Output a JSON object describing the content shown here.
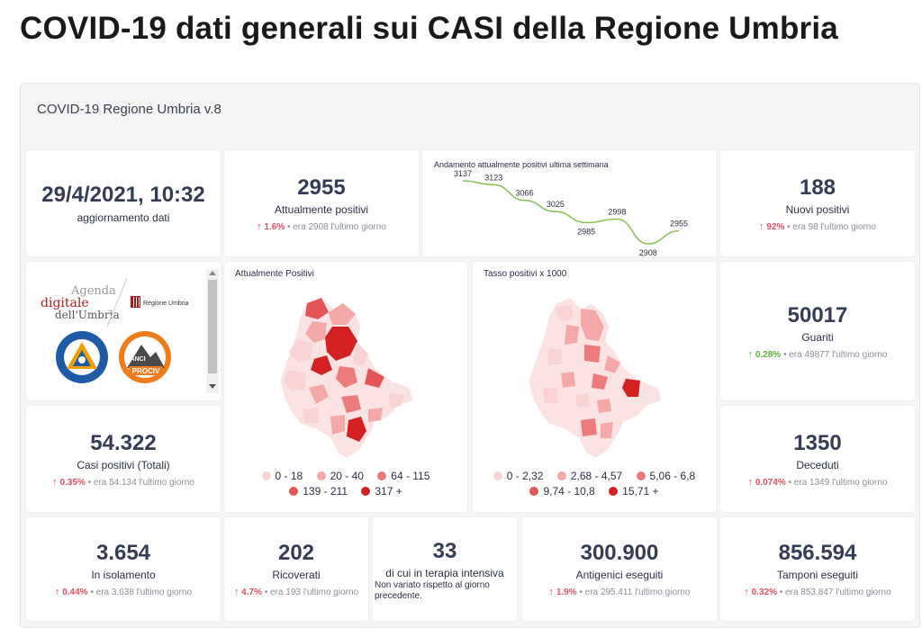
{
  "page_title": "COVID-19 dati generali sui CASI della Regione Umbria",
  "dashboard_title": "COVID-19 Regione Umbria v.8",
  "update": {
    "datetime": "29/4/2021, 10:32",
    "label": "aggiornamento dati"
  },
  "attualmente_positivi": {
    "value": "2955",
    "label": "Attualmente positivi",
    "pct": "1.6%",
    "prev": "• era 2908  l'ultimo giorno"
  },
  "trend_chart": {
    "title": "Andamento attualmente positivi ultima settimana",
    "chart_data": {
      "type": "line",
      "title": "Andamento attualmente positivi ultima settimana",
      "values": [
        3137,
        3123,
        3066,
        3025,
        2985,
        2998,
        2908,
        2955
      ],
      "labels": [
        "3137",
        "3123",
        "3066",
        "3025",
        "2985",
        "2998",
        "2908",
        "2955"
      ]
    }
  },
  "nuovi_positivi": {
    "value": "188",
    "label": "Nuovi positivi",
    "pct": "92%",
    "prev": "• era 98  l'ultimo giorno"
  },
  "logos": {
    "agenda_line1": "Agenda",
    "agenda_line2": "digitale",
    "agenda_line3": "dell'Umbria",
    "regione": "Regione Umbria",
    "protezione": "Protezione Civile",
    "protezione_sub": "Regione Umbria",
    "anci": "ANCI",
    "prociv": "PROCIV"
  },
  "map_positivi": {
    "title": "Attualmente Positivi",
    "legend": [
      "0 - 18",
      "20 - 40",
      "64 - 115",
      "139 - 211",
      "317 +"
    ]
  },
  "map_tasso": {
    "title": "Tasso positivi x 1000",
    "legend": [
      "0 - 2,32",
      "2,68 - 4,57",
      "5,06 - 6,8",
      "9,74 - 10,8",
      "15,71 +"
    ]
  },
  "colors": {
    "c1": "#fad4d4",
    "c2": "#f4a8a8",
    "c3": "#ec7c7c",
    "c4": "#e25656",
    "c5": "#d42020"
  },
  "guariti": {
    "value": "50017",
    "label": "Guariti",
    "pct": "0.28%",
    "prev": "• era 49877  l'ultimo giorno"
  },
  "casi_totali": {
    "value": "54.322",
    "label": "Casi positivi (Totali)",
    "pct": "0.35%",
    "prev": "• era 54.134  l'ultimo giorno"
  },
  "deceduti": {
    "value": "1350",
    "label": "Deceduti",
    "pct": "0.074%",
    "prev": "• era 1349  l'ultimo giorno"
  },
  "isolamento": {
    "value": "3.654",
    "label": "In isolamento",
    "pct": "0.44%",
    "prev": "• era 3.638  l'ultimo giorno"
  },
  "ricoverati": {
    "value": "202",
    "label": "Ricoverati",
    "pct": "4.7%",
    "prev": "• era 193  l'ultimo giorno"
  },
  "terapia": {
    "value": "33",
    "label": "di cui in terapia intensiva",
    "note": "Non variato rispetto al giorno precedente."
  },
  "antigenici": {
    "value": "300.900",
    "label": "Antigenici eseguiti",
    "pct": "1.9%",
    "prev": "• era 295.411  l'ultimo giorno"
  },
  "tamponi": {
    "value": "856.594",
    "label": "Tamponi eseguiti",
    "pct": "0.32%",
    "prev": "• era 853.847  l'ultimo giorno"
  }
}
